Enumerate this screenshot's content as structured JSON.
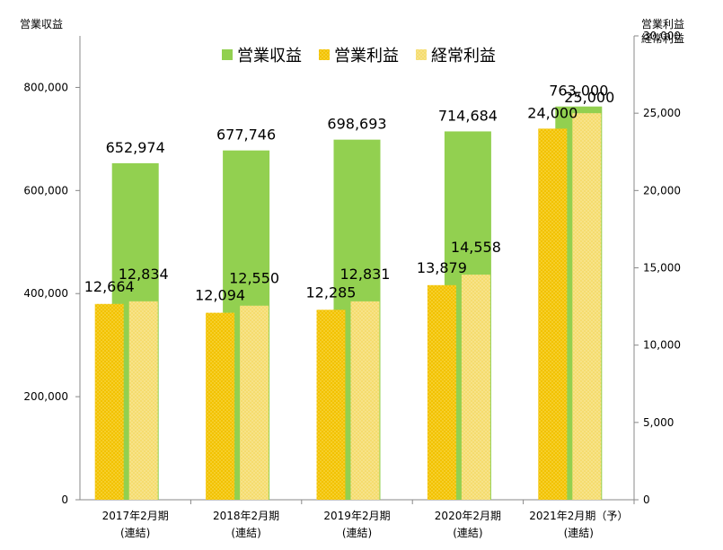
{
  "chart_data": {
    "type": "bar",
    "title": "",
    "left_axis_title": "営業収益",
    "right_axis_title": [
      "営業利益",
      "経常利益"
    ],
    "categories": [
      [
        "2017年2月期",
        "(連結)"
      ],
      [
        "2018年2月期",
        "(連結)"
      ],
      [
        "2019年2月期",
        "(連結)"
      ],
      [
        "2020年2月期",
        "(連結)"
      ],
      [
        "2021年2月期（予）",
        "(連結)"
      ]
    ],
    "series": [
      {
        "name": "営業収益",
        "axis": "left",
        "color": "#92d050",
        "values": [
          652974,
          677746,
          698693,
          714684,
          763000
        ],
        "labels": [
          "652,974",
          "677,746",
          "698,693",
          "714,684",
          "763,000"
        ]
      },
      {
        "name": "営業利益",
        "axis": "right",
        "color": "#f2c200",
        "values": [
          12664,
          12094,
          12285,
          13879,
          24000
        ],
        "labels": [
          "12,664",
          "12,094",
          "12,285",
          "13,879",
          "24,000"
        ]
      },
      {
        "name": "経常利益",
        "axis": "right",
        "color": "#f5dc6e",
        "values": [
          12834,
          12550,
          12831,
          14558,
          25000
        ],
        "labels": [
          "12,834",
          "12,550",
          "12,831",
          "14,558",
          "25,000"
        ]
      }
    ],
    "left_ylim": [
      0,
      900000
    ],
    "left_ticks": [
      0,
      200000,
      400000,
      600000,
      800000
    ],
    "left_tick_labels": [
      "0",
      "200,000",
      "400,000",
      "600,000",
      "800,000"
    ],
    "right_ylim": [
      0,
      30000
    ],
    "right_ticks": [
      0,
      5000,
      10000,
      15000,
      20000,
      25000,
      30000
    ],
    "right_tick_labels": [
      "0",
      "5,000",
      "10,000",
      "15,000",
      "20,000",
      "25,000",
      "30,000"
    ],
    "grid": false,
    "legend_position": "top-center"
  }
}
